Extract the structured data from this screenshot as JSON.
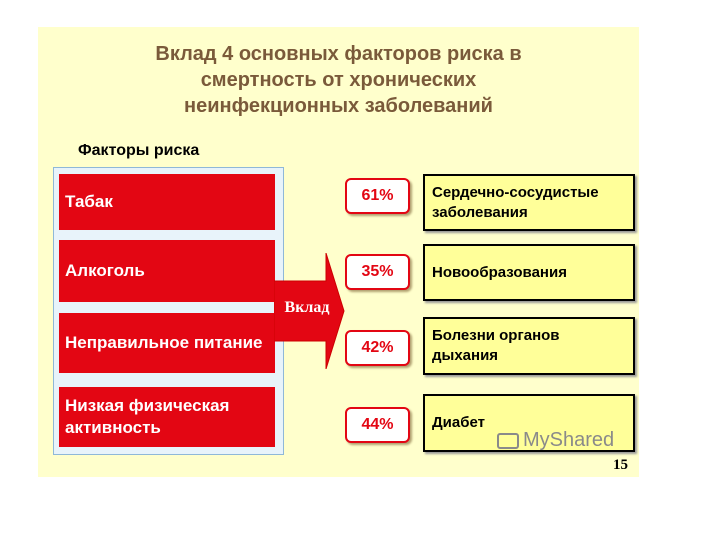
{
  "slide": {
    "title_lines": [
      "Вклад 4 основных факторов риска  в",
      "смертность от хронических",
      "неинфекционных заболеваний"
    ],
    "factors_label": "Факторы риска",
    "factors": [
      {
        "label": "Табак"
      },
      {
        "label": "Алкоголь"
      },
      {
        "label": "Неправильное питание"
      },
      {
        "label": "Низкая физическая активность"
      }
    ],
    "arrow_label": "Вклад",
    "outcomes": [
      {
        "percent": "61%",
        "label": "Сердечно-сосудистые заболевания"
      },
      {
        "percent": "35%",
        "label": "Новообразования"
      },
      {
        "percent": "42%",
        "label": "Болезни органов дыхания"
      },
      {
        "percent": "44%",
        "label": "Диабет"
      }
    ],
    "watermark": "MyShared",
    "page_number": "15",
    "colors": {
      "background": "#ffffcc",
      "factor_red": "#e30613",
      "title": "#7a5a3a",
      "disease_fill": "#ffff99"
    }
  }
}
